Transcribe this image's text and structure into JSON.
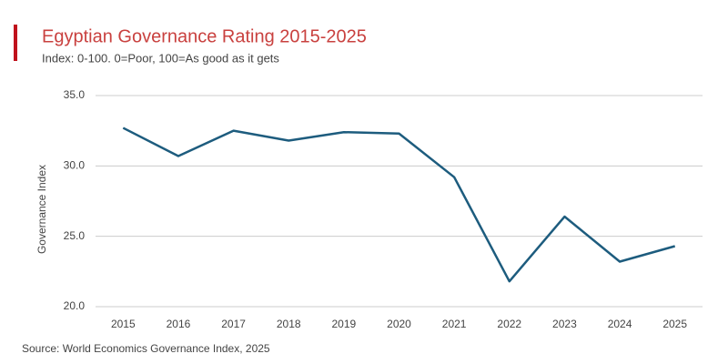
{
  "chart_data": {
    "type": "line",
    "title": "Egyptian Governance Rating 2015-2025",
    "subtitle": "Index: 0-100. 0=Poor, 100=As good as it gets",
    "y_label": "Governance Index",
    "source": "Source: World Economics Governance Index, 2025",
    "categories": [
      "2015",
      "2016",
      "2017",
      "2018",
      "2019",
      "2020",
      "2021",
      "2022",
      "2023",
      "2024",
      "2025"
    ],
    "values": [
      32.7,
      30.7,
      32.5,
      31.8,
      32.4,
      32.3,
      29.2,
      21.8,
      26.4,
      23.2,
      24.3
    ],
    "color": "#1d5c7e",
    "ylim": [
      20,
      35
    ],
    "yticks": [
      {
        "value": 20,
        "label": "20.0"
      },
      {
        "value": 25,
        "label": "25.0"
      },
      {
        "value": 30,
        "label": "30.0"
      },
      {
        "value": 35,
        "label": "35.0"
      }
    ],
    "grid": true
  }
}
